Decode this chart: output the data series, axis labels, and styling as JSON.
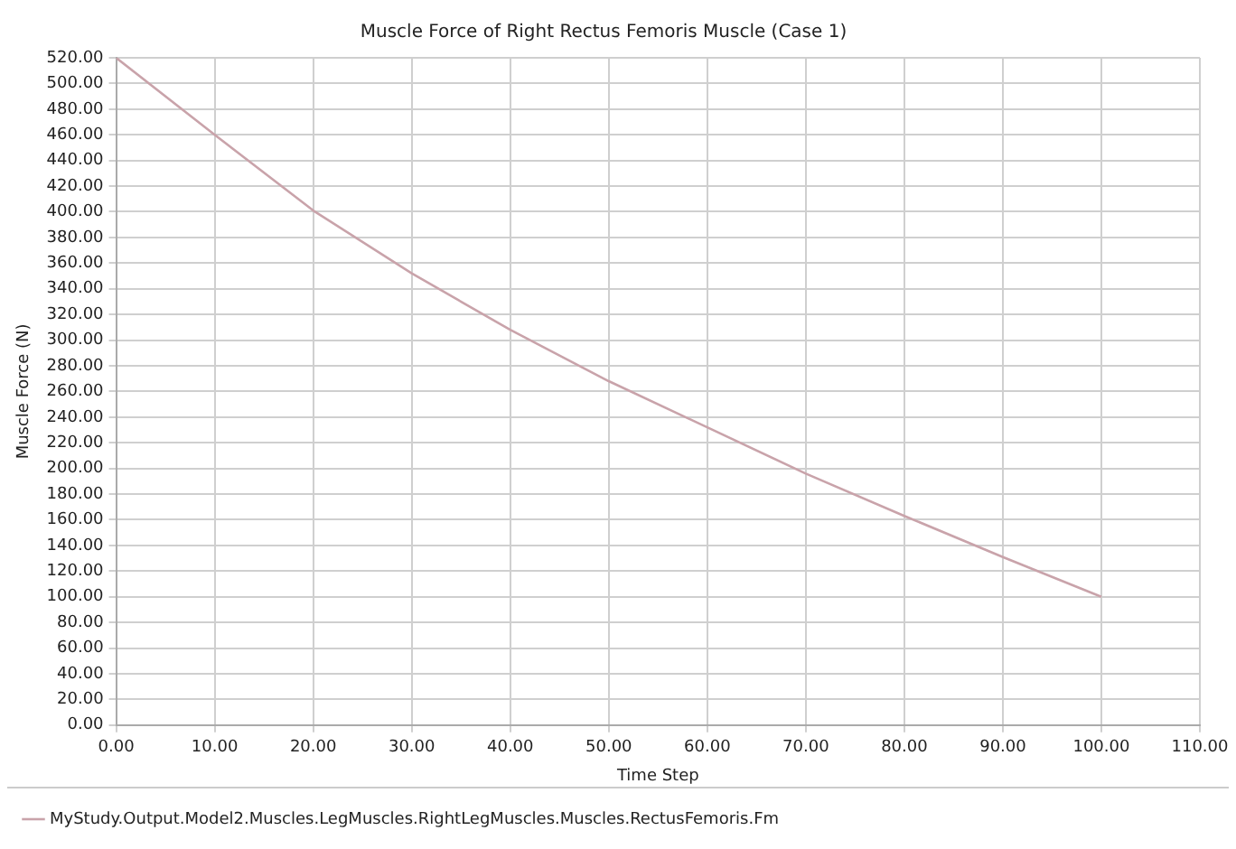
{
  "chart_data": {
    "type": "line",
    "title": "Muscle Force of Right Rectus Femoris Muscle (Case 1)",
    "xlabel": "Time Step",
    "ylabel": "Muscle Force (N)",
    "x": [
      0,
      10,
      20,
      30,
      40,
      50,
      60,
      70,
      80,
      90,
      100
    ],
    "series": [
      {
        "name": "MyStudy.Output.Model2.Muscles.LegMuscles.RightLegMuscles.Muscles.RectusFemoris.Fm",
        "color": "#c9a3aa",
        "values": [
          520,
          460,
          401,
          352,
          308,
          268,
          232,
          196,
          163,
          131,
          100
        ]
      }
    ],
    "xlim": [
      0,
      110
    ],
    "xticks": [
      {
        "value": 0,
        "label": "0.00"
      },
      {
        "value": 10,
        "label": "10.00"
      },
      {
        "value": 20,
        "label": "20.00"
      },
      {
        "value": 30,
        "label": "30.00"
      },
      {
        "value": 40,
        "label": "40.00"
      },
      {
        "value": 50,
        "label": "50.00"
      },
      {
        "value": 60,
        "label": "60.00"
      },
      {
        "value": 70,
        "label": "70.00"
      },
      {
        "value": 80,
        "label": "80.00"
      },
      {
        "value": 90,
        "label": "90.00"
      },
      {
        "value": 100,
        "label": "100.00"
      },
      {
        "value": 110,
        "label": "110.00"
      }
    ],
    "ylim": [
      0,
      520
    ],
    "yticks": [
      {
        "value": 0,
        "label": "0.00"
      },
      {
        "value": 20,
        "label": "20.00"
      },
      {
        "value": 40,
        "label": "40.00"
      },
      {
        "value": 60,
        "label": "60.00"
      },
      {
        "value": 80,
        "label": "80.00"
      },
      {
        "value": 100,
        "label": "100.00"
      },
      {
        "value": 120,
        "label": "120.00"
      },
      {
        "value": 140,
        "label": "140.00"
      },
      {
        "value": 160,
        "label": "160.00"
      },
      {
        "value": 180,
        "label": "180.00"
      },
      {
        "value": 200,
        "label": "200.00"
      },
      {
        "value": 220,
        "label": "220.00"
      },
      {
        "value": 240,
        "label": "240.00"
      },
      {
        "value": 260,
        "label": "260.00"
      },
      {
        "value": 280,
        "label": "280.00"
      },
      {
        "value": 300,
        "label": "300.00"
      },
      {
        "value": 320,
        "label": "320.00"
      },
      {
        "value": 340,
        "label": "340.00"
      },
      {
        "value": 360,
        "label": "360.00"
      },
      {
        "value": 380,
        "label": "380.00"
      },
      {
        "value": 400,
        "label": "400.00"
      },
      {
        "value": 420,
        "label": "420.00"
      },
      {
        "value": 440,
        "label": "440.00"
      },
      {
        "value": 460,
        "label": "460.00"
      },
      {
        "value": 480,
        "label": "480.00"
      },
      {
        "value": 500,
        "label": "500.00"
      },
      {
        "value": 520,
        "label": "520.00"
      }
    ],
    "grid": true,
    "legend": "bottom",
    "marker": "none",
    "line_style": "solid"
  }
}
